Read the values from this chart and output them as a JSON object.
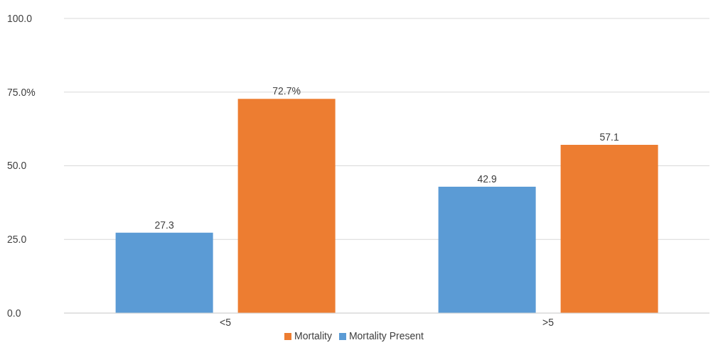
{
  "chart_data": {
    "type": "bar",
    "categories": [
      "<5",
      ">5"
    ],
    "series": [
      {
        "name": "Mortality Present",
        "color": "#5b9bd5",
        "values": [
          27.3,
          42.9
        ],
        "value_labels": [
          "27.3",
          "42.9"
        ]
      },
      {
        "name": "Mortality",
        "color": "#ed7d31",
        "values": [
          72.7,
          57.1
        ],
        "value_labels": [
          "72.7%",
          "57.1"
        ]
      }
    ],
    "ylim": [
      0,
      100
    ],
    "yticks": [
      {
        "value": 0,
        "label": "0.0"
      },
      {
        "value": 25,
        "label": "25.0"
      },
      {
        "value": 50,
        "label": "50.0"
      },
      {
        "value": 75,
        "label": "75.0%"
      },
      {
        "value": 100,
        "label": "100.0"
      }
    ],
    "grid": "y",
    "legend": "bottom"
  }
}
